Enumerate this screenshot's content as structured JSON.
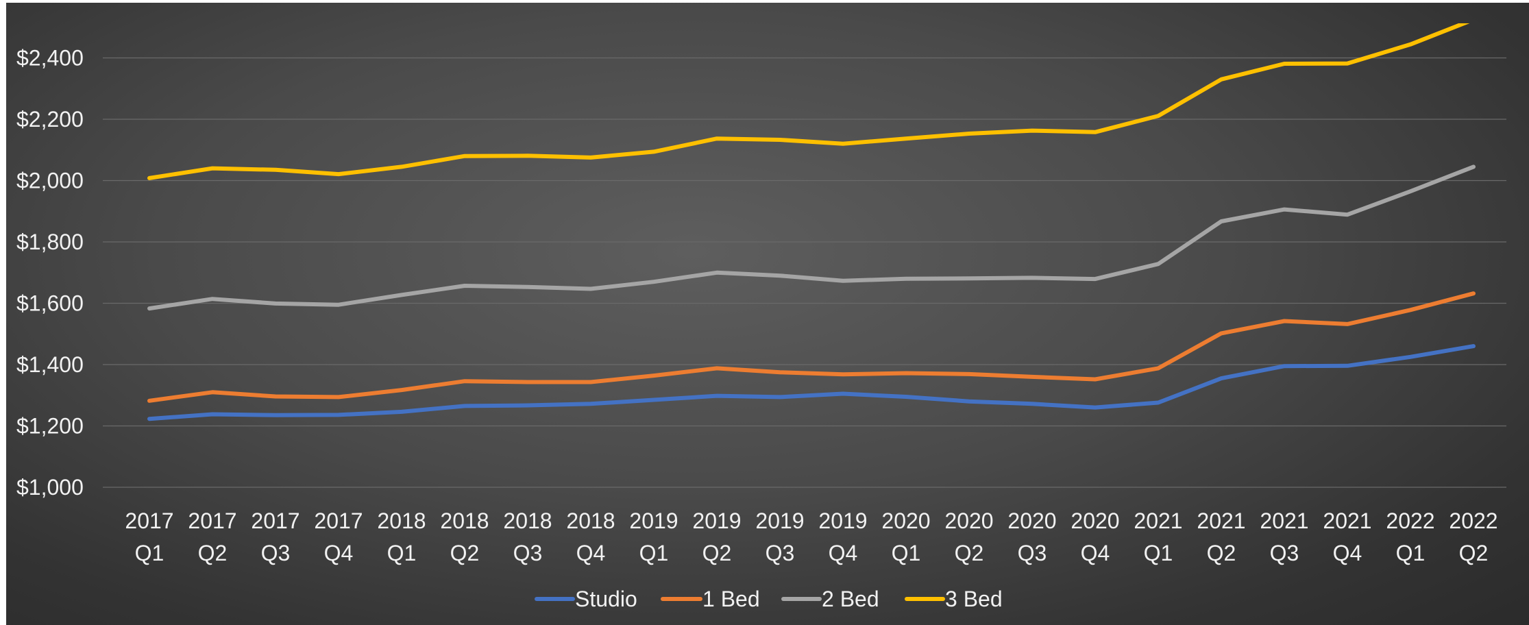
{
  "chart_data": {
    "type": "line",
    "title": "",
    "xlabel": "",
    "ylabel": "",
    "ylim": [
      1000,
      2500
    ],
    "y_ticks": [
      "$1,000",
      "$1,200",
      "$1,400",
      "$1,600",
      "$1,800",
      "$2,000",
      "$2,200",
      "$2,400"
    ],
    "y_tick_values": [
      1000,
      1200,
      1400,
      1600,
      1800,
      2000,
      2200,
      2400
    ],
    "grid": true,
    "legend_position": "bottom",
    "categories": [
      {
        "year": "2017",
        "quarter": "Q1"
      },
      {
        "year": "2017",
        "quarter": "Q2"
      },
      {
        "year": "2017",
        "quarter": "Q3"
      },
      {
        "year": "2017",
        "quarter": "Q4"
      },
      {
        "year": "2018",
        "quarter": "Q1"
      },
      {
        "year": "2018",
        "quarter": "Q2"
      },
      {
        "year": "2018",
        "quarter": "Q3"
      },
      {
        "year": "2018",
        "quarter": "Q4"
      },
      {
        "year": "2019",
        "quarter": "Q1"
      },
      {
        "year": "2019",
        "quarter": "Q2"
      },
      {
        "year": "2019",
        "quarter": "Q3"
      },
      {
        "year": "2019",
        "quarter": "Q4"
      },
      {
        "year": "2020",
        "quarter": "Q1"
      },
      {
        "year": "2020",
        "quarter": "Q2"
      },
      {
        "year": "2020",
        "quarter": "Q3"
      },
      {
        "year": "2020",
        "quarter": "Q4"
      },
      {
        "year": "2021",
        "quarter": "Q1"
      },
      {
        "year": "2021",
        "quarter": "Q2"
      },
      {
        "year": "2021",
        "quarter": "Q3"
      },
      {
        "year": "2021",
        "quarter": "Q4"
      },
      {
        "year": "2022",
        "quarter": "Q1"
      },
      {
        "year": "2022",
        "quarter": "Q2"
      }
    ],
    "series": [
      {
        "name": "Studio",
        "color": "#4472C4",
        "values": [
          1223,
          1238,
          1235,
          1236,
          1246,
          1265,
          1267,
          1272,
          1285,
          1298,
          1294,
          1305,
          1295,
          1280,
          1272,
          1260,
          1276,
          1355,
          1395,
          1396,
          1425,
          1460
        ]
      },
      {
        "name": "1 Bed",
        "color": "#ED7D31",
        "values": [
          1282,
          1310,
          1296,
          1294,
          1317,
          1346,
          1343,
          1343,
          1364,
          1388,
          1375,
          1368,
          1372,
          1369,
          1360,
          1352,
          1388,
          1502,
          1542,
          1532,
          1578,
          1632
        ]
      },
      {
        "name": "2 Bed",
        "color": "#A5A5A5",
        "values": [
          1583,
          1614,
          1599,
          1595,
          1627,
          1657,
          1653,
          1647,
          1670,
          1700,
          1690,
          1673,
          1680,
          1681,
          1683,
          1679,
          1728,
          1867,
          1906,
          1889,
          1965,
          2045
        ]
      },
      {
        "name": "3 Bed",
        "color": "#FFC000",
        "values": [
          2008,
          2040,
          2035,
          2021,
          2045,
          2080,
          2081,
          2075,
          2094,
          2137,
          2133,
          2120,
          2137,
          2153,
          2163,
          2158,
          2211,
          2330,
          2381,
          2382,
          2444,
          2525
        ]
      }
    ]
  }
}
